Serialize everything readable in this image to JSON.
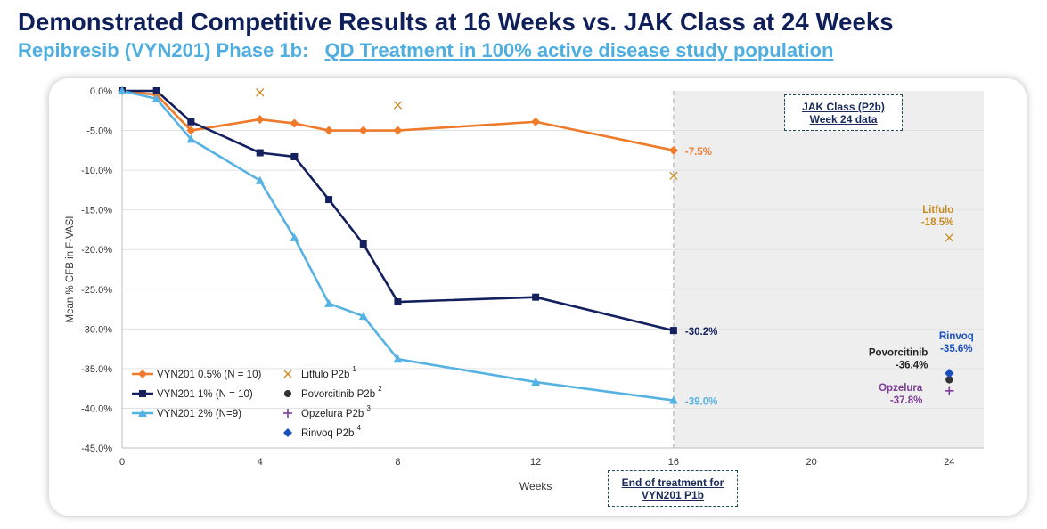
{
  "header": {
    "title": "Demonstrated Competitive Results at 16 Weeks vs. JAK Class at 24 Weeks",
    "subtitle_prefix": "Repibresib (VYN201) Phase 1b:",
    "subtitle_link": "QD Treatment in 100% active disease study population"
  },
  "callouts": {
    "jak_line1": "JAK Class (P2b)",
    "jak_line2": "Week 24 data",
    "eot_line1": "End of treatment for",
    "eot_line2": "VYN201 P1b"
  },
  "chart_data": {
    "type": "line",
    "xlabel": "Weeks",
    "ylabel": "Mean % CFB in F-VASI",
    "xlim": [
      0,
      25
    ],
    "ylim": [
      -45,
      0
    ],
    "x_ticks": [
      0,
      4,
      8,
      12,
      16,
      20,
      24
    ],
    "y_ticks": [
      0,
      -5,
      -10,
      -15,
      -20,
      -25,
      -30,
      -35,
      -40,
      -45
    ],
    "y_tick_labels": [
      "0.0%",
      "-5.0%",
      "-10.0%",
      "-15.0%",
      "-20.0%",
      "-25.0%",
      "-30.0%",
      "-35.0%",
      "-40.0%",
      "-45.0%"
    ],
    "shaded_region": {
      "x_from": 16,
      "x_to": 25,
      "color": "#eeeeee"
    },
    "grid": "horizontal",
    "legend_position": "bottom-left",
    "series": [
      {
        "name": "VYN201 0.5% (N = 10)",
        "color": "#ee7a2a",
        "marker": "diamond",
        "x": [
          0,
          1,
          2,
          4,
          5,
          6,
          7,
          8,
          12,
          16
        ],
        "y": [
          0,
          -0.5,
          -5.0,
          -3.6,
          -4.1,
          -5.0,
          -5.0,
          -5.0,
          -3.9,
          -7.5
        ],
        "end_label": "-7.5%"
      },
      {
        "name": "VYN201 1% (N = 10)",
        "color": "#14215e",
        "marker": "square",
        "x": [
          0,
          1,
          2,
          4,
          5,
          6,
          7,
          8,
          12,
          16
        ],
        "y": [
          0,
          0,
          -3.9,
          -7.8,
          -8.3,
          -13.7,
          -19.3,
          -26.6,
          -26.0,
          -30.2
        ],
        "end_label": "-30.2%"
      },
      {
        "name": "VYN201 2% (N=9)",
        "color": "#56b2e2",
        "marker": "triangle",
        "x": [
          0,
          1,
          2,
          4,
          5,
          6,
          7,
          8,
          12,
          16
        ],
        "y": [
          0,
          -1.0,
          -6.1,
          -11.3,
          -18.5,
          -26.8,
          -28.4,
          -33.8,
          -36.7,
          -39.0
        ],
        "end_label": "-39.0%"
      }
    ],
    "comparators": [
      {
        "name": "Litfulo P2b",
        "sup": "1",
        "color": "#c98a1e",
        "marker": "x",
        "points": [
          {
            "x": 4,
            "y": -0.2
          },
          {
            "x": 8,
            "y": -1.8
          },
          {
            "x": 16,
            "y": -10.7
          },
          {
            "x": 24,
            "y": -18.5
          }
        ],
        "label_name": "Litfulo",
        "label_value": "-18.5%",
        "label_color": "#c98a1e"
      },
      {
        "name": "Povorcitinib P2b",
        "sup": "2",
        "color": "#333333",
        "marker": "circle",
        "points": [
          {
            "x": 24,
            "y": -36.4
          }
        ],
        "label_name": "Povorcitinib",
        "label_value": "-36.4%",
        "label_color": "#222222"
      },
      {
        "name": "Opzelura P2b",
        "sup": "3",
        "color": "#7d3c98",
        "marker": "plus",
        "points": [
          {
            "x": 24,
            "y": -37.8
          }
        ],
        "label_name": "Opzelura",
        "label_value": "-37.8%",
        "label_color": "#7d3c98"
      },
      {
        "name": "Rinvoq P2b",
        "sup": "4",
        "color": "#1a4fbf",
        "marker": "diamond",
        "points": [
          {
            "x": 24,
            "y": -35.6
          }
        ],
        "label_name": "Rinvoq",
        "label_value": "-35.6%",
        "label_color": "#1a4fbf"
      }
    ]
  }
}
